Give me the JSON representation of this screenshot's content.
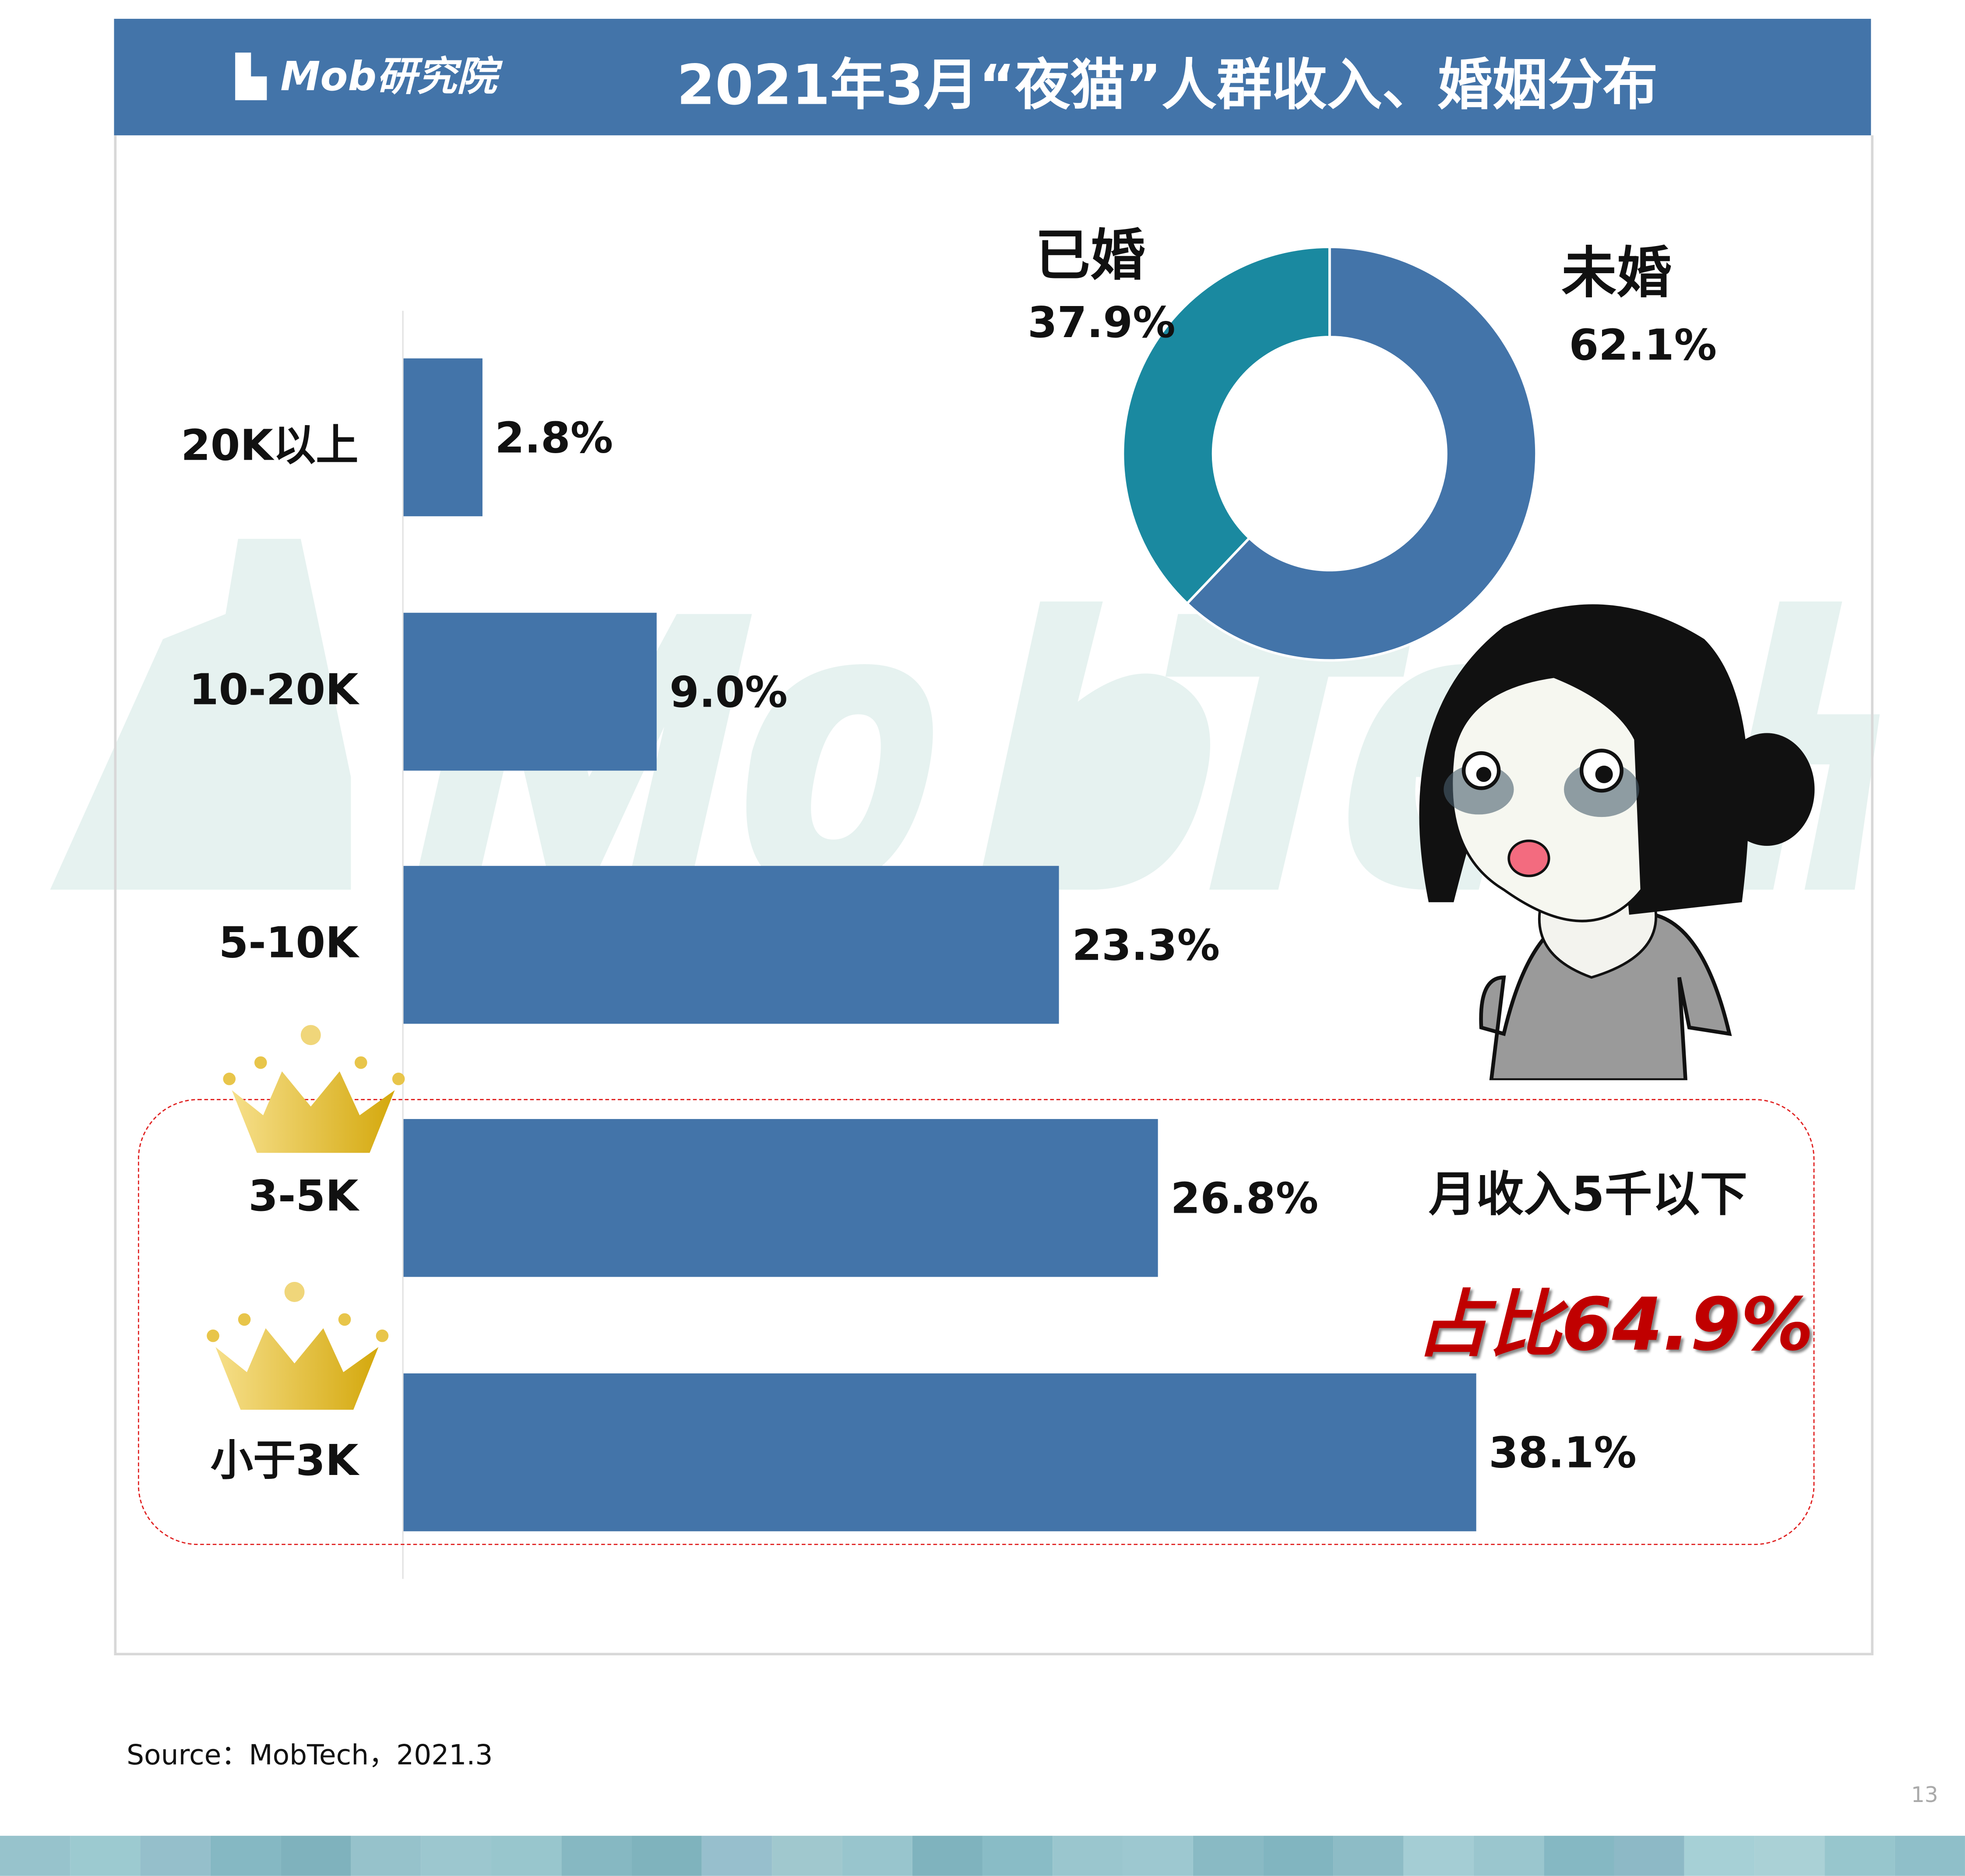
{
  "header": {
    "logo_text": "Mob研究院",
    "title": "2021年3月“夜猫”人群收入、婚姻分布"
  },
  "watermark": "MobTech",
  "chart_data": [
    {
      "type": "bar",
      "orientation": "horizontal",
      "categories": [
        "20K以上",
        "10-20K",
        "5-10K",
        "3-5K",
        "小于3K"
      ],
      "values": [
        2.8,
        9.0,
        23.3,
        26.8,
        38.1
      ],
      "value_labels": [
        "2.8%",
        "9.0%",
        "23.3%",
        "26.8%",
        "38.1%"
      ],
      "unit": "%",
      "color": "#4374a9",
      "xlim": [
        0,
        38.1
      ],
      "grid": false
    },
    {
      "type": "pie",
      "donut": true,
      "slices": [
        {
          "label": "未婚",
          "value": 62.1,
          "value_label": "62.1%",
          "color": "#4374a9"
        },
        {
          "label": "已婚",
          "value": 37.9,
          "value_label": "37.9%",
          "color": "#1a89a0"
        }
      ]
    }
  ],
  "highlight": {
    "line1": "月收入5千以下",
    "line2": "占比64.9%",
    "accent": "#c00000",
    "crowned_categories": [
      "3-5K",
      "小于3K"
    ]
  },
  "footer": {
    "source": "Source：MobTech，2021.3",
    "page_number": "13"
  },
  "stripe_colors": [
    "#97c3cc",
    "#9ccad0",
    "#95bfcb",
    "#85b8c3",
    "#7fb2bd",
    "#96c2cb",
    "#9cc7cf",
    "#98c6cd",
    "#86b8c2",
    "#7fb3bd",
    "#97bfcd",
    "#a0c8ce",
    "#98c5cd",
    "#7fb3be",
    "#89bcc6",
    "#9ac6ce",
    "#9dc8d0",
    "#89bac4",
    "#81b5c0",
    "#8dbcc6",
    "#a4cdd4",
    "#9ac6ce",
    "#85b8c3",
    "#8db9c6",
    "#a6d0d6",
    "#aad1d6",
    "#97c6cd",
    "#8fbfc9"
  ]
}
